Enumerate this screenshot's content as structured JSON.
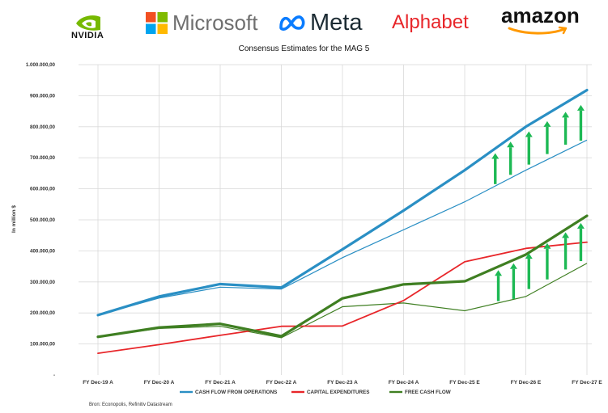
{
  "logos": {
    "nvidia": "NVIDIA",
    "microsoft": "Microsoft",
    "meta": "Meta",
    "alphabet": "Alphabet",
    "amazon": "amazon"
  },
  "source": "Bron: Econopolis, Refinitiv Datastream",
  "colors": {
    "cfo": "#2a8fc4",
    "capex": "#e8262a",
    "fcf": "#3f7f22",
    "arrow": "#1db954",
    "grid": "#d9d9d9"
  },
  "chart_data": {
    "type": "line",
    "title": "Consensus Estimates for the MAG 5",
    "ylabel": "In million $",
    "xlabel": "",
    "ylim": [
      0,
      1000000
    ],
    "yticks": [
      "-",
      "100.000,00",
      "200.000,00",
      "300.000,00",
      "400.000,00",
      "500.000,00",
      "600.000,00",
      "700.000,00",
      "800.000,00",
      "900.000,00",
      "1.000.000,00"
    ],
    "categories": [
      "FY Dec-19 A",
      "FY Dec-20 A",
      "FY Dec-21 A",
      "FY Dec-22 A",
      "FY Dec-23 A",
      "FY Dec-24 A",
      "FY Dec-25 E",
      "FY Dec-26 E",
      "FY Dec-27 E"
    ],
    "legend_position": "bottom",
    "series": [
      {
        "name": "CASH FLOW FROM OPERATIONS",
        "key": "cfo",
        "values": [
          193000,
          253000,
          293000,
          282000,
          405000,
          530000,
          660000,
          800000,
          918000
        ]
      },
      {
        "name": "CAPITAL EXPENDITURES",
        "key": "capex",
        "values": [
          70000,
          98000,
          128000,
          157000,
          158000,
          240000,
          365000,
          408000,
          428000
        ]
      },
      {
        "name": "FREE CASH FLOW",
        "key": "fcf",
        "values": [
          123000,
          153000,
          165000,
          125000,
          247000,
          292000,
          302000,
          388000,
          513000
        ]
      }
    ],
    "previous_estimates": [
      {
        "key": "cfo",
        "values": [
          193000,
          248000,
          283000,
          277000,
          378000,
          468000,
          558000,
          660000,
          757000
        ]
      },
      {
        "key": "fcf",
        "values": [
          123000,
          150000,
          157000,
          120000,
          220000,
          232000,
          207000,
          253000,
          360000
        ]
      }
    ],
    "revision_arrows": [
      {
        "pos": 6.5,
        "from": 615000,
        "to": 715000
      },
      {
        "pos": 6.75,
        "from": 645000,
        "to": 752000
      },
      {
        "pos": 7.05,
        "from": 678000,
        "to": 785000
      },
      {
        "pos": 7.35,
        "from": 712000,
        "to": 818000
      },
      {
        "pos": 7.65,
        "from": 742000,
        "to": 848000
      },
      {
        "pos": 7.9,
        "from": 755000,
        "to": 870000
      },
      {
        "pos": 6.55,
        "from": 238000,
        "to": 338000
      },
      {
        "pos": 6.8,
        "from": 245000,
        "to": 360000
      },
      {
        "pos": 7.05,
        "from": 277000,
        "to": 393000
      },
      {
        "pos": 7.35,
        "from": 308000,
        "to": 425000
      },
      {
        "pos": 7.65,
        "from": 340000,
        "to": 460000
      },
      {
        "pos": 7.9,
        "from": 367000,
        "to": 490000
      }
    ]
  }
}
